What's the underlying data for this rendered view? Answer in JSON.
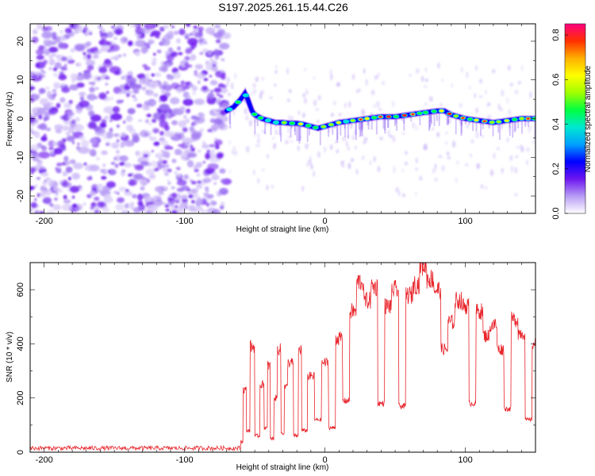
{
  "title": "S197.2025.261.15.44.C26",
  "chart_data": [
    {
      "type": "heatmap",
      "name": "spectrogram",
      "xlabel": "Height of straight line (km)",
      "ylabel": "Frequency (Hz)",
      "xlim": [
        -210,
        150
      ],
      "ylim": [
        -24.5,
        24.5
      ],
      "xticks": [
        -200,
        -100,
        0,
        100
      ],
      "yticks": [
        -20,
        -10,
        0,
        10,
        20
      ],
      "noise_region_x": [
        -210,
        -70
      ],
      "signal_onset_x": -70,
      "signal_track": {
        "x": [
          -70,
          -65,
          -60,
          -57,
          -55,
          -52,
          -50,
          -45,
          -40,
          -35,
          -30,
          -25,
          -20,
          -15,
          -10,
          -5,
          0,
          10,
          20,
          30,
          40,
          50,
          60,
          70,
          80,
          85,
          90,
          100,
          110,
          120,
          130,
          140,
          150
        ],
        "freq": [
          2,
          3,
          5,
          6.5,
          5,
          2,
          1,
          0,
          -0.5,
          -1,
          -1,
          -1.2,
          -1.2,
          -1.5,
          -2,
          -2.5,
          -2,
          -1,
          -0.5,
          0,
          0.5,
          0.5,
          1,
          1.5,
          2,
          2,
          1,
          0,
          -0.5,
          -1,
          -0.5,
          0,
          0
        ]
      },
      "colorbar": {
        "label": "Normalized spectral amplitude",
        "range": [
          0.0,
          0.85
        ],
        "ticks": [
          "0.0",
          "0.2",
          "0.4",
          "0.6",
          "0.8"
        ],
        "colors": [
          "#ffffff",
          "#b79cf4",
          "#6d16f0",
          "#0000ff",
          "#00a0ff",
          "#00e8d0",
          "#00ff40",
          "#a0ff00",
          "#ffff00",
          "#ffb000",
          "#ff3000",
          "#ff0080"
        ]
      }
    },
    {
      "type": "line",
      "name": "snr",
      "xlabel": "Height of straight line (km)",
      "ylabel": "SNR (10 * v/v)",
      "xlim": [
        -210,
        150
      ],
      "ylim": [
        0,
        700
      ],
      "xticks": [
        -200,
        -100,
        0,
        100
      ],
      "yticks": [
        0,
        200,
        400,
        600
      ],
      "color": "#e8232a",
      "baseline_noise": {
        "x_range": [
          -210,
          -60
        ],
        "level": 15,
        "jitter": 8
      },
      "key_points": {
        "x": [
          -60,
          -57,
          -55,
          -52,
          -48,
          -45,
          -42,
          -40,
          -38,
          -35,
          -33,
          -30,
          -28,
          -25,
          -20,
          -18,
          -15,
          -10,
          -5,
          0,
          5,
          10,
          15,
          20,
          25,
          30,
          35,
          40,
          45,
          50,
          55,
          60,
          65,
          70,
          75,
          80,
          85,
          90,
          95,
          100,
          105,
          110,
          115,
          120,
          125,
          130,
          135,
          140,
          145,
          150
        ],
        "y": [
          40,
          230,
          80,
          390,
          60,
          250,
          90,
          320,
          50,
          200,
          380,
          70,
          240,
          330,
          60,
          380,
          80,
          280,
          120,
          330,
          90,
          420,
          190,
          520,
          630,
          560,
          610,
          180,
          540,
          600,
          170,
          580,
          620,
          690,
          640,
          600,
          380,
          480,
          560,
          540,
          180,
          520,
          430,
          470,
          380,
          160,
          490,
          440,
          120,
          400
        ]
      }
    }
  ]
}
